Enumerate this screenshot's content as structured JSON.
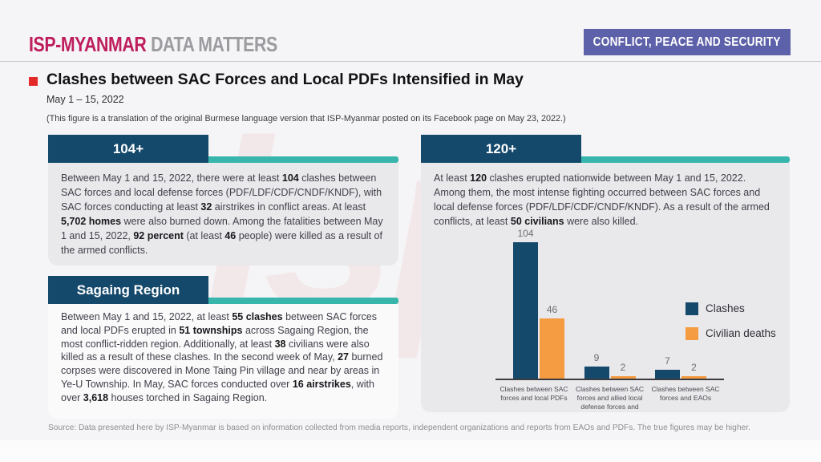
{
  "brand": {
    "logo_primary": "ISP-MYANMAR",
    "logo_secondary": "DATA MATTERS",
    "category_badge": "CONFLICT, PEACE AND SECURITY",
    "watermark": "isp"
  },
  "header": {
    "title": "Clashes between SAC Forces and Local PDFs Intensified in May",
    "date_range": "May 1 – 15, 2022",
    "note": "(This figure is a translation of the original Burmese language version that ISP-Myanmar posted on its Facebook page on May 23, 2022.)"
  },
  "panels": {
    "clashes_104": {
      "heading": "104+",
      "body": [
        {
          "text": "Between May 1 and 15, 2022, there were at least "
        },
        {
          "text": "104",
          "bold": true
        },
        {
          "text": " clashes between SAC forces and local defense forces (PDF/LDF/CDF/CNDF/KNDF), with SAC forces conducting at least "
        },
        {
          "text": "32",
          "bold": true
        },
        {
          "text": " airstrikes in conflict areas. At least "
        },
        {
          "text": "5,702 homes",
          "bold": true
        },
        {
          "text": " were also burned down. Among the fatalities between May 1 and 15, 2022, "
        },
        {
          "text": "92 percent",
          "bold": true
        },
        {
          "text": " (at least "
        },
        {
          "text": "46",
          "bold": true
        },
        {
          "text": " people) were killed as a result of the armed conflicts."
        }
      ]
    },
    "sagaing": {
      "heading": "Sagaing Region",
      "body": [
        {
          "text": "Between May 1 and 15, 2022, at least "
        },
        {
          "text": "55 clashes",
          "bold": true
        },
        {
          "text": " between SAC forces and local PDFs erupted in "
        },
        {
          "text": "51 townships",
          "bold": true
        },
        {
          "text": " across Sagaing Region, the most conflict-ridden region. Additionally, at least "
        },
        {
          "text": "38",
          "bold": true
        },
        {
          "text": " civilians were also killed as a result of these clashes. In the second week of May, "
        },
        {
          "text": "27",
          "bold": true
        },
        {
          "text": " burned corpses were discovered in Mone Taing Pin village and near by areas in Ye-U Township. In May, SAC forces conducted over "
        },
        {
          "text": "16 airstrikes",
          "bold": true
        },
        {
          "text": ", with over "
        },
        {
          "text": "3,618",
          "bold": true
        },
        {
          "text": " houses torched in Sagaing Region."
        }
      ]
    },
    "nationwide_120": {
      "heading": "120+",
      "body": [
        {
          "text": "At least "
        },
        {
          "text": "120",
          "bold": true
        },
        {
          "text": " clashes erupted nationwide between May 1 and 15, 2022. Among them, the most intense fighting occurred between SAC forces and local defense forces (PDF/LDF/CDF/CNDF/KNDF). As a result of the armed conflicts, at least "
        },
        {
          "text": "50 civilians",
          "bold": true
        },
        {
          "text": " were also killed."
        }
      ]
    }
  },
  "chart_data": {
    "type": "bar",
    "categories": [
      "Clashes between SAC forces and local PDFs",
      "Clashes between SAC forces and allied local defense forces and EAOs",
      "Clashes between SAC forces and EAOs"
    ],
    "series": [
      {
        "name": "Clashes",
        "color": "#14496b",
        "values": [
          104,
          9,
          7
        ]
      },
      {
        "name": "Civilian deaths",
        "color": "#f59b41",
        "values": [
          46,
          2,
          2
        ]
      }
    ],
    "value_labels": true,
    "legend_position": "right",
    "ylim": [
      0,
      110
    ],
    "grid": false
  },
  "footer": {
    "source": "Source: Data presented here by ISP-Myanmar is based on information collected from media reports, independent organizations and reports from EAOs and PDFs. The true figures may be higher."
  },
  "colors": {
    "navy": "#14496b",
    "teal": "#38b6ac",
    "orange": "#f59b41",
    "magenta": "#be1e5e",
    "purple": "#5d61a9",
    "bullet_red": "#e32a2a",
    "panel_gray": "#e9e9ec"
  }
}
